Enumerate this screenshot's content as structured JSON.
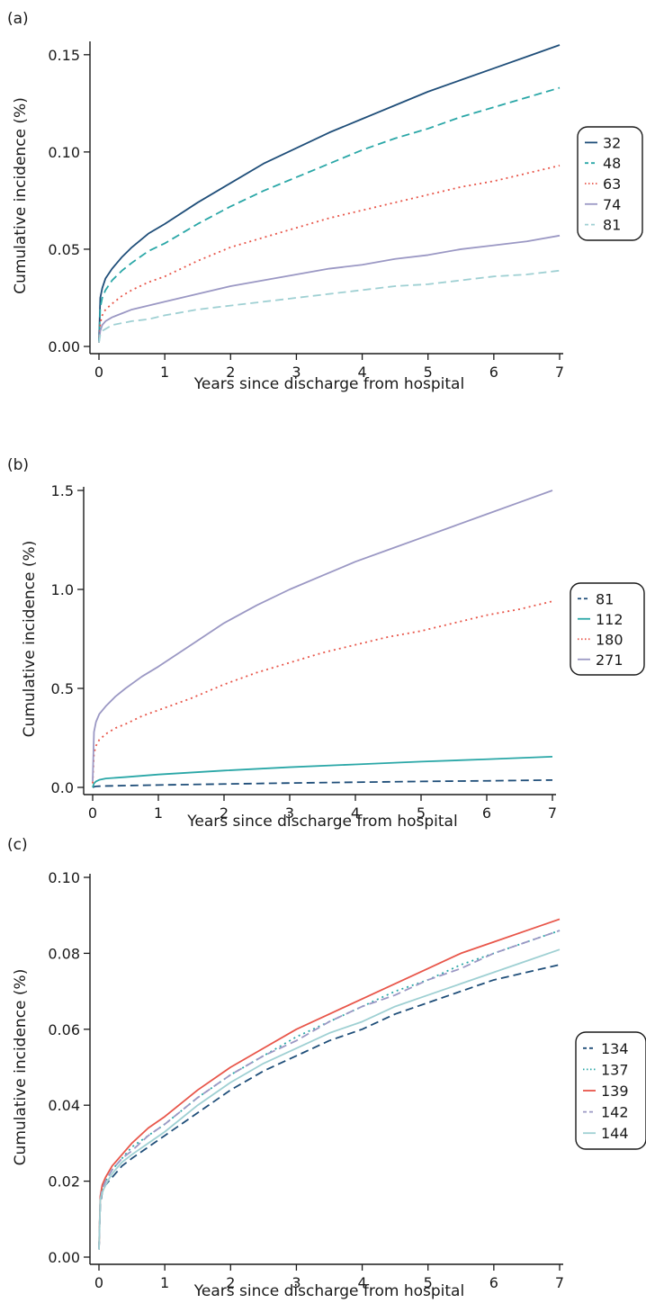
{
  "chart_data": [
    {
      "type": "line",
      "panel_label": "(a)",
      "xlabel": "Years since discharge from hospital",
      "ylabel": "Cumulative incidence (%)",
      "xlim": [
        0,
        7
      ],
      "ylim": [
        0,
        0.155
      ],
      "xticks": [
        0,
        1,
        2,
        3,
        4,
        5,
        6,
        7
      ],
      "yticks": [
        "0.00",
        "0.05",
        "0.10",
        "0.15"
      ],
      "ytick_values": [
        0,
        0.05,
        0.1,
        0.15
      ],
      "grid": false,
      "legend_position": "right",
      "series": [
        {
          "name": "32",
          "color": "#1f4e79",
          "dash": "solid",
          "x": [
            0,
            0.02,
            0.05,
            0.1,
            0.2,
            0.35,
            0.5,
            0.75,
            1,
            1.5,
            2,
            2.5,
            3,
            3.5,
            4,
            4.5,
            5,
            5.5,
            6,
            6.5,
            7
          ],
          "y": [
            0.002,
            0.025,
            0.03,
            0.035,
            0.04,
            0.046,
            0.051,
            0.058,
            0.063,
            0.074,
            0.084,
            0.094,
            0.102,
            0.11,
            0.117,
            0.124,
            0.131,
            0.137,
            0.143,
            0.149,
            0.155
          ]
        },
        {
          "name": "48",
          "color": "#2aa7a7",
          "dash": "dashed",
          "x": [
            0,
            0.02,
            0.05,
            0.1,
            0.2,
            0.35,
            0.5,
            0.75,
            1,
            1.5,
            2,
            2.5,
            3,
            3.5,
            4,
            4.5,
            5,
            5.5,
            6,
            6.5,
            7
          ],
          "y": [
            0.002,
            0.02,
            0.025,
            0.029,
            0.034,
            0.039,
            0.043,
            0.049,
            0.053,
            0.063,
            0.072,
            0.08,
            0.087,
            0.094,
            0.101,
            0.107,
            0.112,
            0.118,
            0.123,
            0.128,
            0.133
          ]
        },
        {
          "name": "63",
          "color": "#e8564a",
          "dash": "dotted",
          "x": [
            0,
            0.02,
            0.05,
            0.1,
            0.2,
            0.35,
            0.5,
            0.75,
            1,
            1.5,
            2,
            2.5,
            3,
            3.5,
            4,
            4.5,
            5,
            5.5,
            6,
            6.5,
            7
          ],
          "y": [
            0.002,
            0.012,
            0.016,
            0.019,
            0.022,
            0.026,
            0.029,
            0.033,
            0.036,
            0.044,
            0.051,
            0.056,
            0.061,
            0.066,
            0.07,
            0.074,
            0.078,
            0.082,
            0.085,
            0.089,
            0.093
          ]
        },
        {
          "name": "74",
          "color": "#9b98c4",
          "dash": "solid",
          "x": [
            0,
            0.02,
            0.05,
            0.1,
            0.2,
            0.35,
            0.5,
            0.75,
            1,
            1.5,
            2,
            2.5,
            3,
            3.5,
            4,
            4.5,
            5,
            5.5,
            6,
            6.5,
            7
          ],
          "y": [
            0.002,
            0.008,
            0.011,
            0.013,
            0.015,
            0.017,
            0.019,
            0.021,
            0.023,
            0.027,
            0.031,
            0.034,
            0.037,
            0.04,
            0.042,
            0.045,
            0.047,
            0.05,
            0.052,
            0.054,
            0.057
          ]
        },
        {
          "name": "81",
          "color": "#9fd0d3",
          "dash": "dashed",
          "x": [
            0,
            0.02,
            0.05,
            0.1,
            0.2,
            0.35,
            0.5,
            0.75,
            1,
            1.5,
            2,
            2.5,
            3,
            3.5,
            4,
            4.5,
            5,
            5.5,
            6,
            6.5,
            7
          ],
          "y": [
            0.002,
            0.006,
            0.008,
            0.009,
            0.011,
            0.012,
            0.013,
            0.014,
            0.016,
            0.019,
            0.021,
            0.023,
            0.025,
            0.027,
            0.029,
            0.031,
            0.032,
            0.034,
            0.036,
            0.037,
            0.039
          ]
        }
      ]
    },
    {
      "type": "line",
      "panel_label": "(b)",
      "xlabel": "Years since discharge from hospital",
      "ylabel": "Cumulative incidence (%)",
      "xlim": [
        0,
        7
      ],
      "ylim": [
        0,
        1.5
      ],
      "xticks": [
        0,
        1,
        2,
        3,
        4,
        5,
        6,
        7
      ],
      "yticks": [
        "0.0",
        "0.5",
        "1.0",
        "1.5"
      ],
      "ytick_values": [
        0,
        0.5,
        1.0,
        1.5
      ],
      "grid": false,
      "legend_position": "right",
      "series": [
        {
          "name": "81",
          "color": "#1f4e79",
          "dash": "dashed",
          "x": [
            0,
            0.02,
            0.05,
            0.1,
            0.2,
            0.5,
            1,
            2,
            3,
            4,
            5,
            6,
            7
          ],
          "y": [
            0.0,
            0.003,
            0.005,
            0.006,
            0.007,
            0.009,
            0.012,
            0.017,
            0.022,
            0.026,
            0.03,
            0.033,
            0.037
          ]
        },
        {
          "name": "112",
          "color": "#2aa7a7",
          "dash": "solid",
          "x": [
            0,
            0.02,
            0.05,
            0.1,
            0.2,
            0.5,
            1,
            2,
            3,
            4,
            5,
            6,
            7
          ],
          "y": [
            0.0,
            0.02,
            0.03,
            0.038,
            0.045,
            0.052,
            0.065,
            0.085,
            0.102,
            0.116,
            0.13,
            0.142,
            0.155
          ]
        },
        {
          "name": "180",
          "color": "#e8564a",
          "dash": "dotted",
          "x": [
            0,
            0.02,
            0.05,
            0.1,
            0.2,
            0.35,
            0.5,
            0.75,
            1,
            1.5,
            2,
            2.5,
            3,
            3.5,
            4,
            4.5,
            5,
            5.5,
            6,
            6.5,
            7
          ],
          "y": [
            0.02,
            0.17,
            0.21,
            0.24,
            0.27,
            0.3,
            0.32,
            0.36,
            0.39,
            0.45,
            0.52,
            0.58,
            0.63,
            0.68,
            0.72,
            0.76,
            0.79,
            0.83,
            0.87,
            0.9,
            0.94
          ]
        },
        {
          "name": "271",
          "color": "#9b98c4",
          "dash": "solid",
          "x": [
            0,
            0.02,
            0.05,
            0.1,
            0.2,
            0.35,
            0.5,
            0.75,
            1,
            1.5,
            2,
            2.5,
            3,
            3.5,
            4,
            4.5,
            5,
            5.5,
            6,
            6.5,
            7
          ],
          "y": [
            0.03,
            0.28,
            0.33,
            0.37,
            0.41,
            0.46,
            0.5,
            0.56,
            0.61,
            0.72,
            0.83,
            0.92,
            1.0,
            1.07,
            1.14,
            1.2,
            1.26,
            1.32,
            1.38,
            1.44,
            1.5
          ]
        }
      ]
    },
    {
      "type": "line",
      "panel_label": "(c)",
      "xlabel": "Years since discharge from hospital",
      "ylabel": "Cumulative incidence (%)",
      "xlim": [
        0,
        7
      ],
      "ylim": [
        0,
        0.1
      ],
      "xticks": [
        0,
        1,
        2,
        3,
        4,
        5,
        6,
        7
      ],
      "yticks": [
        "0.00",
        "0.02",
        "0.04",
        "0.06",
        "0.08",
        "0.10"
      ],
      "ytick_values": [
        0,
        0.02,
        0.04,
        0.06,
        0.08,
        0.1
      ],
      "grid": false,
      "legend_position": "right",
      "series": [
        {
          "name": "134",
          "color": "#1f4e79",
          "dash": "dashed",
          "x": [
            0,
            0.02,
            0.05,
            0.1,
            0.2,
            0.35,
            0.5,
            0.75,
            1,
            1.5,
            2,
            2.5,
            3,
            3.5,
            4,
            4.5,
            5,
            5.5,
            6,
            6.5,
            7
          ],
          "y": [
            0.002,
            0.014,
            0.017,
            0.019,
            0.021,
            0.024,
            0.026,
            0.029,
            0.032,
            0.038,
            0.044,
            0.049,
            0.053,
            0.057,
            0.06,
            0.064,
            0.067,
            0.07,
            0.073,
            0.075,
            0.077
          ]
        },
        {
          "name": "137",
          "color": "#2aa7a7",
          "dash": "dotted",
          "x": [
            0,
            0.02,
            0.05,
            0.1,
            0.2,
            0.35,
            0.5,
            0.75,
            1,
            1.5,
            2,
            2.5,
            3,
            3.5,
            4,
            4.5,
            5,
            5.5,
            6,
            6.5,
            7
          ],
          "y": [
            0.002,
            0.015,
            0.018,
            0.02,
            0.023,
            0.026,
            0.029,
            0.032,
            0.035,
            0.042,
            0.048,
            0.053,
            0.058,
            0.062,
            0.066,
            0.07,
            0.073,
            0.077,
            0.08,
            0.083,
            0.086
          ]
        },
        {
          "name": "139",
          "color": "#e8564a",
          "dash": "solid",
          "x": [
            0,
            0.02,
            0.05,
            0.1,
            0.2,
            0.35,
            0.5,
            0.75,
            1,
            1.5,
            2,
            2.5,
            3,
            3.5,
            4,
            4.5,
            5,
            5.5,
            6,
            6.5,
            7
          ],
          "y": [
            0.002,
            0.016,
            0.019,
            0.021,
            0.024,
            0.027,
            0.03,
            0.034,
            0.037,
            0.044,
            0.05,
            0.055,
            0.06,
            0.064,
            0.068,
            0.072,
            0.076,
            0.08,
            0.083,
            0.086,
            0.089
          ]
        },
        {
          "name": "142",
          "color": "#9b98c4",
          "dash": "dashed",
          "x": [
            0,
            0.02,
            0.05,
            0.1,
            0.2,
            0.35,
            0.5,
            0.75,
            1,
            1.5,
            2,
            2.5,
            3,
            3.5,
            4,
            4.5,
            5,
            5.5,
            6,
            6.5,
            7
          ],
          "y": [
            0.002,
            0.015,
            0.018,
            0.02,
            0.023,
            0.026,
            0.028,
            0.032,
            0.035,
            0.042,
            0.048,
            0.053,
            0.057,
            0.062,
            0.066,
            0.069,
            0.073,
            0.076,
            0.08,
            0.083,
            0.086
          ]
        },
        {
          "name": "144",
          "color": "#9fd0d3",
          "dash": "solid",
          "x": [
            0,
            0.02,
            0.05,
            0.1,
            0.2,
            0.35,
            0.5,
            0.75,
            1,
            1.5,
            2,
            2.5,
            3,
            3.5,
            4,
            4.5,
            5,
            5.5,
            6,
            6.5,
            7
          ],
          "y": [
            0.002,
            0.015,
            0.017,
            0.019,
            0.022,
            0.025,
            0.027,
            0.03,
            0.033,
            0.04,
            0.046,
            0.051,
            0.055,
            0.059,
            0.062,
            0.066,
            0.069,
            0.072,
            0.075,
            0.078,
            0.081
          ]
        }
      ]
    }
  ]
}
